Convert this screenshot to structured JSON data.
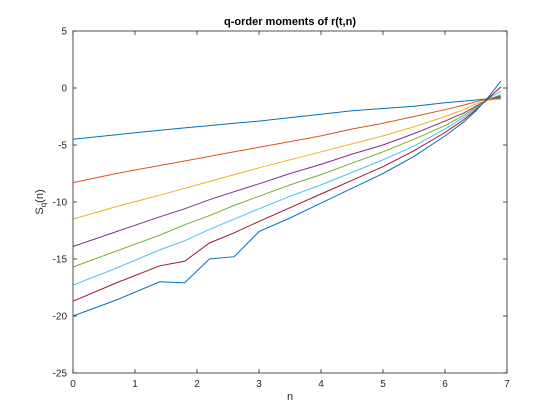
{
  "chart_data": {
    "type": "line",
    "title": "q-order moments of r(t,n)",
    "xlabel": "n",
    "ylabel": "S",
    "ylabel_sub": "q",
    "ylabel_suffix": "(n)",
    "xlim": [
      0,
      7
    ],
    "ylim": [
      -25,
      5
    ],
    "xticks": [
      "0",
      "1",
      "2",
      "3",
      "4",
      "5",
      "6",
      "7"
    ],
    "yticks": [
      "-25",
      "-20",
      "-15",
      "-10",
      "-5",
      "0",
      "5"
    ],
    "grid": false,
    "legend": "none",
    "x": [
      0,
      0.7,
      1.4,
      1.8,
      2.2,
      2.6,
      3.0,
      3.5,
      4.0,
      4.5,
      5.0,
      5.5,
      6.0,
      6.3,
      6.5,
      6.7,
      6.9
    ],
    "series": [
      {
        "color": "#0072BD",
        "values": [
          -4.5,
          -4.1,
          -3.7,
          -3.5,
          -3.3,
          -3.1,
          -2.9,
          -2.6,
          -2.3,
          -2.0,
          -1.8,
          -1.6,
          -1.3,
          -1.15,
          -1.05,
          -0.95,
          -0.7
        ]
      },
      {
        "color": "#D95319",
        "values": [
          -8.3,
          -7.5,
          -6.8,
          -6.4,
          -6.0,
          -5.6,
          -5.2,
          -4.7,
          -4.2,
          -3.6,
          -3.1,
          -2.5,
          -1.9,
          -1.5,
          -1.2,
          -0.95,
          -0.9
        ]
      },
      {
        "color": "#EDB120",
        "values": [
          -11.5,
          -10.4,
          -9.4,
          -8.8,
          -8.2,
          -7.6,
          -7.0,
          -6.3,
          -5.6,
          -4.9,
          -4.2,
          -3.4,
          -2.5,
          -1.9,
          -1.4,
          -1.05,
          -1.0
        ]
      },
      {
        "color": "#7E2F8E",
        "values": [
          -13.9,
          -12.6,
          -11.3,
          -10.6,
          -9.8,
          -9.1,
          -8.4,
          -7.5,
          -6.7,
          -5.8,
          -5.0,
          -4.0,
          -2.9,
          -2.2,
          -1.6,
          -1.0,
          -0.8
        ]
      },
      {
        "color": "#77AC30",
        "values": [
          -15.7,
          -14.3,
          -12.9,
          -12.0,
          -11.2,
          -10.3,
          -9.5,
          -8.5,
          -7.6,
          -6.6,
          -5.6,
          -4.5,
          -3.3,
          -2.4,
          -1.7,
          -1.0,
          -0.6
        ]
      },
      {
        "color": "#4DBEEE",
        "values": [
          -17.3,
          -15.8,
          -14.2,
          -13.4,
          -12.4,
          -11.5,
          -10.6,
          -9.5,
          -8.5,
          -7.4,
          -6.3,
          -5.1,
          -3.6,
          -2.6,
          -1.8,
          -0.9,
          -0.3
        ]
      },
      {
        "color": "#A2142F",
        "values": [
          -18.7,
          -17.1,
          -15.6,
          -15.2,
          -13.6,
          -12.7,
          -11.7,
          -10.5,
          -9.3,
          -8.1,
          -6.9,
          -5.5,
          -3.9,
          -2.8,
          -1.9,
          -0.9,
          0.1
        ]
      },
      {
        "color": "#0072BD",
        "values": [
          -20.0,
          -18.6,
          -17.0,
          -17.1,
          -15.0,
          -14.8,
          -12.6,
          -11.4,
          -10.1,
          -8.8,
          -7.5,
          -6.0,
          -4.2,
          -3.0,
          -2.0,
          -0.8,
          0.6
        ]
      }
    ]
  }
}
